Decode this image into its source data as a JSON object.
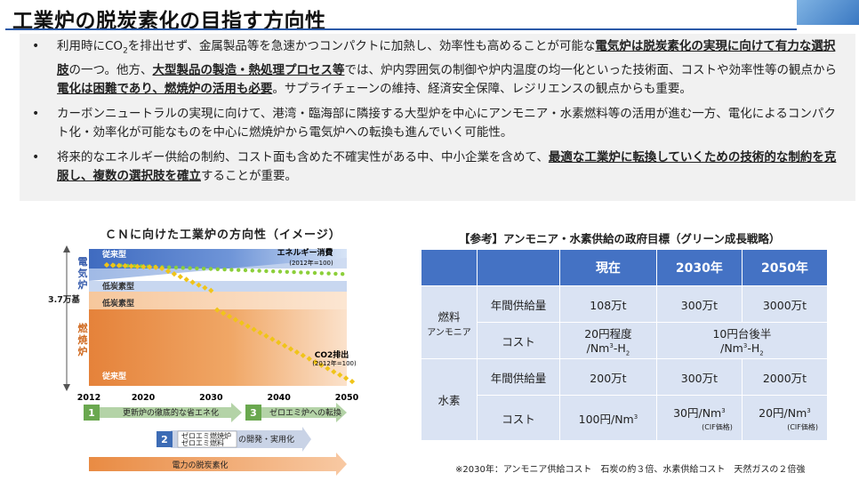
{
  "title": "工業炉の脱炭素化の目指す方向性",
  "bullets": {
    "b1_1": "利用時にCO",
    "b1_sub": "2",
    "b1_2": "を排出せず、金属製品等を急速かつコンパクトに加熱し、効率性も高めることが可能な",
    "b1_u1": "電気炉は脱炭素化の実現に向けて有力な選択肢",
    "b1_3": "の一つ。他方、",
    "b1_u2": "大型製品の製造・熱処理プロセス等",
    "b1_4": "では、炉内雰囲気の制御や炉内温度の均一化といった技術面、コストや効率性等の観点から",
    "b1_u3": "電化は困難であり、燃焼炉の活用も必要",
    "b1_5": "。サプライチェーンの維持、経済安全保障、レジリエンスの観点からも重要。",
    "b2": "カーボンニュートラルの実現に向けて、港湾・臨海部に隣接する大型炉を中心にアンモニア・水素燃料等の活用が進む一方、電化によるコンパクト化・効率化が可能なものを中心に燃焼炉から電気炉への転換も進んでいく可能性。",
    "b3_1": "将来的なエネルギー供給の制約、コスト面も含めた不確実性がある中、中小企業を含めて、",
    "b3_u": "最適な工業炉に転換していくための技術的な制約を克服し、複数の選択肢を確立",
    "b3_2": "することが重要。"
  },
  "chart_title": "ＣＮに向けた工業炉の方向性（イメージ）",
  "chart_data": {
    "type": "area",
    "years": [
      "2012",
      "2020",
      "2030",
      "2040",
      "2050"
    ],
    "y_axis_label_top": "電気炉",
    "y_axis_label_bottom": "燃焼炉",
    "y_value_label": "3.7万基",
    "region_labels": [
      "従来型",
      "低炭素型",
      "低炭素型",
      "従来型"
    ],
    "series": [
      {
        "name": "エネルギー消費",
        "note": "(2012年=100)",
        "color": "#8ccf3a"
      },
      {
        "name": "CO2排出",
        "note": "(2012年=100)",
        "color": "#f0c419"
      }
    ],
    "steps": [
      {
        "num": "1",
        "text": "更新炉の徹底的な省エネ化",
        "color": "#6aa84f"
      },
      {
        "num": "2",
        "text": "ゼロエミ燃焼炉\nゼロエミ燃料",
        "suffix": "の開発・実用化",
        "color": "#3d6cb5"
      },
      {
        "num": "3",
        "text": "ゼロエミ炉への転換",
        "color": "#6aa84f"
      }
    ],
    "bottom_bar": "電力の脱炭素化"
  },
  "ref": {
    "title": "【参考】アンモニア・水素供給の政府目標（グリーン成長戦略）",
    "headers": [
      "",
      "",
      "現在",
      "2030年",
      "2050年"
    ],
    "ammonia_group": "燃料",
    "ammonia_sub": "アンモニア",
    "hydrogen_group": "水素",
    "supply_label": "年間供給量",
    "cost_label": "コスト",
    "ammonia_supply": [
      "108万t",
      "300万t",
      "3000万t"
    ],
    "ammonia_cost_now_1": "20円程度",
    "ammonia_cost_now_2": "/Nm",
    "ammonia_cost_future_1": "10円台後半",
    "ammonia_cost_future_2": "/Nm",
    "h2_suffix": "-H",
    "h2_sub": "2",
    "cubic": "3",
    "hydrogen_supply": [
      "200万t",
      "300万t",
      "2000万t"
    ],
    "hydrogen_cost": [
      "100円/Nm",
      "30円/Nm",
      "20円/Nm"
    ],
    "cif": "(CIF価格)",
    "note": "※2030年：アンモニア供給コスト　石炭の約３倍、水素供給コスト　天然ガスの２倍強"
  }
}
